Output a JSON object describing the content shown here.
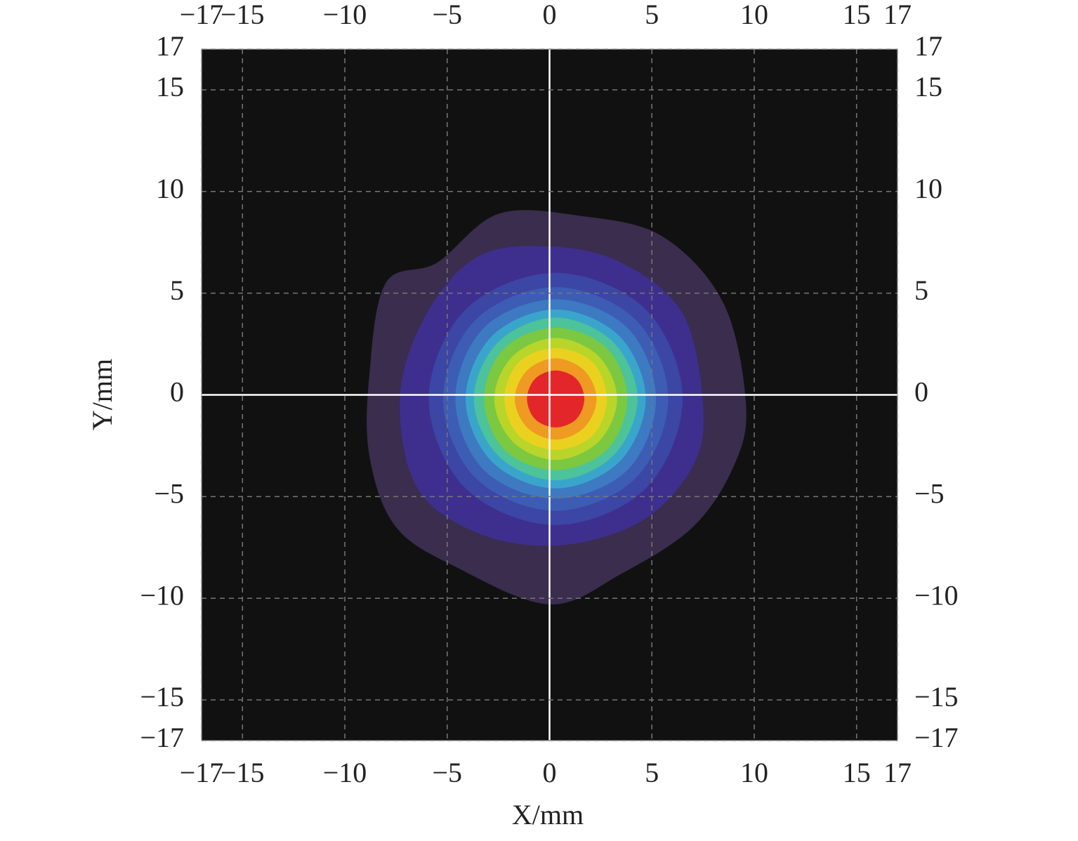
{
  "chart_data": {
    "type": "contour",
    "xlabel": "X/mm",
    "ylabel": "Y/mm",
    "xlim": [
      -17,
      17
    ],
    "ylim": [
      -17,
      17
    ],
    "xticks": [
      {
        "value": -17,
        "label": "−17"
      },
      {
        "value": -15,
        "label": "−15"
      },
      {
        "value": -10,
        "label": "−10"
      },
      {
        "value": -5,
        "label": "−5"
      },
      0,
      5,
      10,
      15,
      17
    ],
    "yticks": [
      {
        "value": -17,
        "label": "−17"
      },
      {
        "value": -15,
        "label": "−15"
      },
      {
        "value": -10,
        "label": "−10"
      },
      {
        "value": -5,
        "label": "−5"
      },
      0,
      5,
      10,
      15,
      17
    ],
    "grid": true,
    "background": "#111111",
    "contours": [
      {
        "color": "#3a2d4e",
        "x": [
          9.6,
          8.5,
          5.5,
          1.5,
          -2.5,
          -5.5,
          -8.0,
          -8.8,
          -8.8,
          -7.5,
          -4.5,
          0,
          3.5,
          7.0,
          9.0
        ],
        "y": [
          -0.5,
          4.5,
          7.8,
          8.8,
          8.9,
          6.5,
          5.5,
          1.0,
          -3.0,
          -6.5,
          -8.5,
          -10.3,
          -8.8,
          -6.5,
          -3.5
        ]
      },
      {
        "color": "#3e2f8e",
        "x": [
          7.5,
          6.5,
          3.5,
          0,
          -3.5,
          -6.0,
          -7.3,
          -6.5,
          -3.5,
          0.5,
          4.5,
          7.0
        ],
        "y": [
          -0.5,
          4.0,
          6.5,
          7.3,
          6.8,
          4.0,
          0,
          -4.5,
          -6.8,
          -7.4,
          -6.2,
          -3.5
        ]
      },
      {
        "color": "#3c46a4",
        "x": [
          6.5,
          4.7,
          0.3,
          -4.1,
          -5.9,
          -4.1,
          0.3,
          4.7
        ],
        "y": [
          -0.2,
          4.2,
          6.0,
          4.2,
          -0.2,
          -4.6,
          -6.4,
          -4.6
        ]
      },
      {
        "color": "#3d5db5",
        "x": [
          5.8,
          4.2,
          0.3,
          -3.6,
          -5.2,
          -3.6,
          0.3,
          4.2
        ],
        "y": [
          -0.2,
          3.7,
          5.3,
          3.7,
          -0.2,
          -4.1,
          -5.7,
          -4.1
        ]
      },
      {
        "color": "#3d7ac2",
        "x": [
          5.2,
          3.8,
          0.3,
          -3.2,
          -4.6,
          -3.2,
          0.3,
          3.8
        ],
        "y": [
          -0.2,
          3.3,
          4.7,
          3.3,
          -0.2,
          -3.7,
          -5.1,
          -3.7
        ]
      },
      {
        "color": "#3aa5cb",
        "x": [
          4.7,
          3.4,
          0.3,
          -2.8,
          -4.1,
          -2.8,
          0.3,
          3.4
        ],
        "y": [
          -0.2,
          2.9,
          4.2,
          2.9,
          -0.2,
          -3.3,
          -4.6,
          -3.3
        ]
      },
      {
        "color": "#4cc39a",
        "x": [
          4.3,
          3.1,
          0.3,
          -2.5,
          -3.7,
          -2.5,
          0.3,
          3.1
        ],
        "y": [
          -0.2,
          2.6,
          3.8,
          2.6,
          -0.2,
          -3.0,
          -4.2,
          -3.0
        ]
      },
      {
        "color": "#7cc841",
        "x": [
          3.8,
          2.8,
          0.3,
          -2.2,
          -3.2,
          -2.2,
          0.3,
          2.8
        ],
        "y": [
          -0.2,
          2.3,
          3.3,
          2.3,
          -0.2,
          -2.7,
          -3.7,
          -2.7
        ]
      },
      {
        "color": "#b9d52a",
        "x": [
          3.3,
          2.4,
          0.3,
          -1.8,
          -2.7,
          -1.8,
          0.3,
          2.4
        ],
        "y": [
          -0.2,
          1.9,
          2.8,
          1.9,
          -0.2,
          -2.3,
          -3.2,
          -2.3
        ]
      },
      {
        "color": "#ebd11f",
        "x": [
          2.8,
          2.1,
          0.3,
          -1.5,
          -2.2,
          -1.5,
          0.3,
          2.1
        ],
        "y": [
          -0.2,
          1.6,
          2.3,
          1.6,
          -0.2,
          -2.0,
          -2.7,
          -2.0
        ]
      },
      {
        "color": "#ef9a22",
        "x": [
          2.3,
          1.7,
          0.3,
          -1.1,
          -1.7,
          -1.1,
          0.3,
          1.7
        ],
        "y": [
          -0.2,
          1.2,
          1.8,
          1.2,
          -0.2,
          -1.6,
          -2.2,
          -1.6
        ]
      },
      {
        "color": "#e2262a",
        "x": [
          1.7,
          1.3,
          0.3,
          -0.7,
          -1.1,
          -0.7,
          0.3,
          1.3
        ],
        "y": [
          -0.2,
          0.8,
          1.2,
          0.8,
          -0.2,
          -1.2,
          -1.6,
          -1.2
        ]
      }
    ]
  }
}
